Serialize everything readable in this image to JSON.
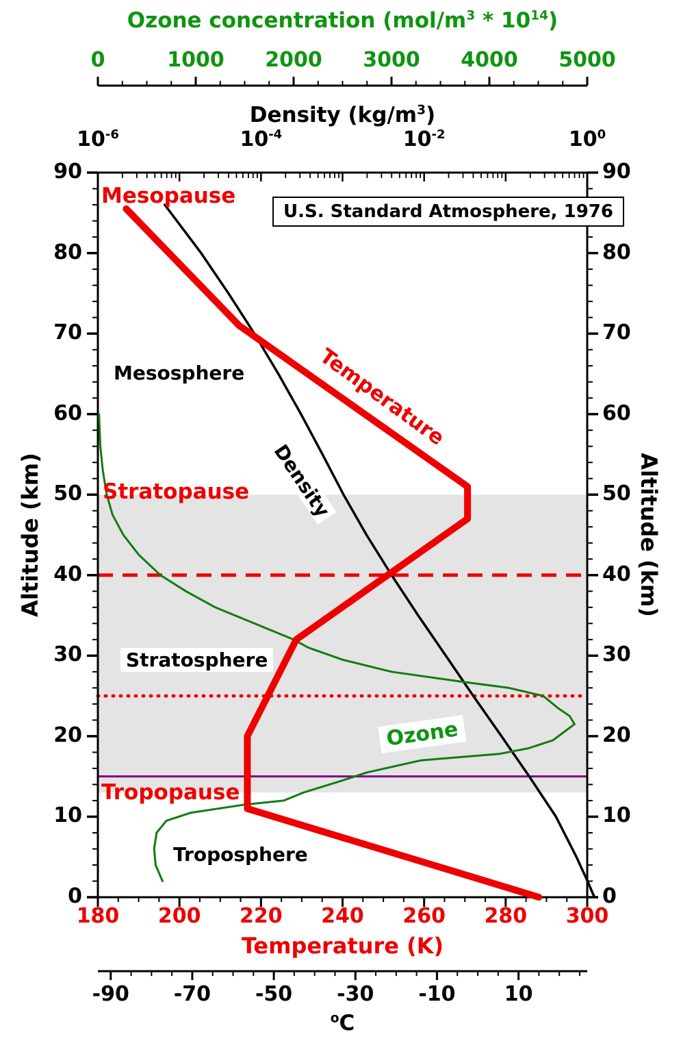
{
  "title_box": "U.S. Standard Atmosphere, 1976",
  "axis_titles": {
    "ozone": {
      "pre": "Ozone concentration (mol/m",
      "sup1": "3",
      "mid": " * 10",
      "sup2": "14",
      "post": ")"
    },
    "density": {
      "pre": "Density (kg/m",
      "sup": "3",
      "post": ")"
    },
    "temperature_k": "Temperature (K)",
    "celsius": {
      "sup": "o",
      "text": "C"
    },
    "altitude_left": "Altitude (km)",
    "altitude_right": "Altitude (km)"
  },
  "annotations": {
    "mesopause": "Mesopause",
    "mesosphere": "Mesosphere",
    "temperature_label": "Temperature",
    "density_label": "Density",
    "stratopause": "Stratopause",
    "stratosphere": "Stratosphere",
    "ozone_label": "Ozone",
    "tropopause": "Tropopause",
    "troposphere": "Troposphere"
  },
  "colors": {
    "temperature": "#ee0000",
    "density": "#000000",
    "ozone_curve": "#117c11",
    "ozone_text": "#0f9410",
    "reference_red": "#ee0000",
    "tropopause_line": "#800080",
    "shade": "#e4e4e4",
    "axis": "#000000"
  },
  "chart_data": {
    "type": "line",
    "title": "U.S. Standard Atmosphere, 1976",
    "y_axis": {
      "label": "Altitude (km)",
      "range": [
        0,
        90
      ],
      "major_ticks": [
        0,
        10,
        20,
        30,
        40,
        50,
        60,
        70,
        80,
        90
      ],
      "minor_step": 2
    },
    "x_axes": {
      "temperature_k": {
        "label": "Temperature (K)",
        "range": [
          180,
          300
        ],
        "ticks": [
          180,
          200,
          220,
          240,
          260,
          280,
          300
        ],
        "minor_step": 5
      },
      "celsius": {
        "label": "°C",
        "ticks": [
          -90,
          -70,
          -50,
          -30,
          -10,
          10
        ],
        "minor_step": 5,
        "offset_from_k": -273.15
      },
      "density": {
        "label": "Density (kg/m³)",
        "scale": "log10",
        "exp_range": [
          -6,
          0
        ],
        "tick_exponents": [
          -6,
          -4,
          -2,
          0
        ]
      },
      "ozone": {
        "label": "Ozone concentration (mol/m³ * 10¹⁴)",
        "range": [
          0,
          5000
        ],
        "ticks": [
          0,
          1000,
          2000,
          3000,
          4000,
          5000
        ],
        "minor_step": 250
      }
    },
    "series": [
      {
        "name": "Temperature",
        "axis": "temperature_k",
        "color": "#ee0000",
        "width": 10,
        "points_alt_value": [
          [
            0,
            288.15
          ],
          [
            11,
            216.65
          ],
          [
            20,
            216.65
          ],
          [
            32,
            228.65
          ],
          [
            47,
            270.65
          ],
          [
            51,
            270.65
          ],
          [
            71,
            214.65
          ],
          [
            85.5,
            186.95
          ]
        ]
      },
      {
        "name": "Density",
        "axis": "density",
        "color": "#000000",
        "width": 3.5,
        "points_alt_value": [
          [
            0,
            1.225
          ],
          [
            2,
            1.007
          ],
          [
            5,
            0.7364
          ],
          [
            10,
            0.4135
          ],
          [
            15,
            0.1948
          ],
          [
            20,
            0.08891
          ],
          [
            25,
            0.04008
          ],
          [
            30,
            0.01841
          ],
          [
            35,
            0.008463
          ],
          [
            40,
            0.003996
          ],
          [
            45,
            0.001966
          ],
          [
            50,
            0.001027
          ],
          [
            55,
            0.0005681
          ],
          [
            60,
            0.0003097
          ],
          [
            65,
            0.0001632
          ],
          [
            70,
            8.283e-05
          ],
          [
            75,
            3.992e-05
          ],
          [
            80,
            1.846e-05
          ],
          [
            86,
            6.6e-06
          ]
        ]
      },
      {
        "name": "Ozone",
        "axis": "ozone",
        "color": "#117c11",
        "width": 3,
        "points_alt_value": [
          [
            2,
            660
          ],
          [
            4,
            590
          ],
          [
            6,
            575
          ],
          [
            8,
            600
          ],
          [
            9.5,
            700
          ],
          [
            10.5,
            950
          ],
          [
            11.5,
            1500
          ],
          [
            12,
            1900
          ],
          [
            13,
            2100
          ],
          [
            14.5,
            2500
          ],
          [
            15.5,
            2750
          ],
          [
            17,
            3300
          ],
          [
            17.8,
            4100
          ],
          [
            18.5,
            4400
          ],
          [
            19.5,
            4650
          ],
          [
            20.5,
            4760
          ],
          [
            21.5,
            4870
          ],
          [
            22.5,
            4820
          ],
          [
            23.5,
            4700
          ],
          [
            25,
            4550
          ],
          [
            26,
            4200
          ],
          [
            26.8,
            3700
          ],
          [
            28,
            3000
          ],
          [
            29.5,
            2500
          ],
          [
            31,
            2150
          ],
          [
            32,
            2000
          ],
          [
            34,
            1600
          ],
          [
            36,
            1200
          ],
          [
            38,
            900
          ],
          [
            40,
            640
          ],
          [
            42.5,
            420
          ],
          [
            45,
            260
          ],
          [
            47.5,
            150
          ],
          [
            50,
            90
          ],
          [
            53,
            50
          ],
          [
            56,
            25
          ],
          [
            60,
            12
          ]
        ]
      }
    ],
    "reference_lines": [
      {
        "altitude": 40,
        "style": "dashed",
        "color": "#ee0000",
        "width": 5
      },
      {
        "altitude": 25,
        "style": "dotted",
        "color": "#ee0000",
        "width": 5
      },
      {
        "altitude": 15,
        "style": "solid",
        "color": "#800080",
        "width": 3
      }
    ],
    "shaded_region": {
      "altitude_range": [
        13,
        50
      ],
      "color": "#e4e4e4"
    }
  }
}
